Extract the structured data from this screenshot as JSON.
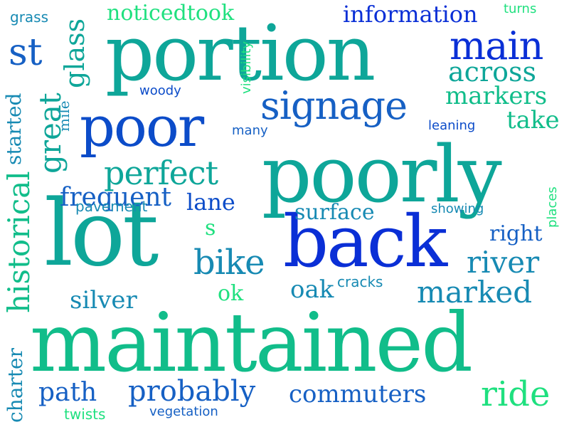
{
  "word_cloud": {
    "words": [
      {
        "key": "maintained",
        "text": "maintained"
      },
      {
        "key": "poorly",
        "text": "poorly"
      },
      {
        "key": "portion",
        "text": "portion"
      },
      {
        "key": "lot",
        "text": "lot"
      },
      {
        "key": "back",
        "text": "back"
      },
      {
        "key": "poor",
        "text": "poor"
      },
      {
        "key": "signage",
        "text": "signage"
      },
      {
        "key": "main",
        "text": "main"
      },
      {
        "key": "perfect",
        "text": "perfect"
      },
      {
        "key": "across",
        "text": "across"
      },
      {
        "key": "markers",
        "text": "markers"
      },
      {
        "key": "information",
        "text": "information"
      },
      {
        "key": "noticedtook",
        "text": "noticedtook"
      },
      {
        "key": "bike",
        "text": "bike"
      },
      {
        "key": "river",
        "text": "river"
      },
      {
        "key": "marked",
        "text": "marked"
      },
      {
        "key": "probably",
        "text": "probably"
      },
      {
        "key": "commuters",
        "text": "commuters"
      },
      {
        "key": "ride",
        "text": "ride"
      },
      {
        "key": "path",
        "text": "path"
      },
      {
        "key": "surface",
        "text": "surface"
      },
      {
        "key": "lane",
        "text": "lane"
      },
      {
        "key": "right",
        "text": "right"
      },
      {
        "key": "take",
        "text": "take"
      },
      {
        "key": "st",
        "text": "st"
      },
      {
        "key": "great",
        "text": "great"
      },
      {
        "key": "glass",
        "text": "glass"
      },
      {
        "key": "historical",
        "text": "historical"
      },
      {
        "key": "started",
        "text": "started"
      },
      {
        "key": "charter",
        "text": "charter"
      },
      {
        "key": "silver",
        "text": "silver"
      },
      {
        "key": "oak",
        "text": "oak"
      },
      {
        "key": "mile",
        "text": "mile"
      },
      {
        "key": "ok",
        "text": "ok"
      },
      {
        "key": "s",
        "text": "s"
      },
      {
        "key": "frequent",
        "text": "frequent"
      },
      {
        "key": "pavement",
        "text": "pavement"
      },
      {
        "key": "woody",
        "text": "woody"
      },
      {
        "key": "many",
        "text": "many"
      },
      {
        "key": "leaning",
        "text": "leaning"
      },
      {
        "key": "showing",
        "text": "showing"
      },
      {
        "key": "cracks",
        "text": "cracks"
      },
      {
        "key": "visibility",
        "text": "visibility"
      },
      {
        "key": "grass",
        "text": "grass"
      },
      {
        "key": "turns",
        "text": "turns"
      },
      {
        "key": "places",
        "text": "places"
      },
      {
        "key": "twists",
        "text": "twists"
      },
      {
        "key": "vegetation",
        "text": "vegetation"
      }
    ]
  }
}
